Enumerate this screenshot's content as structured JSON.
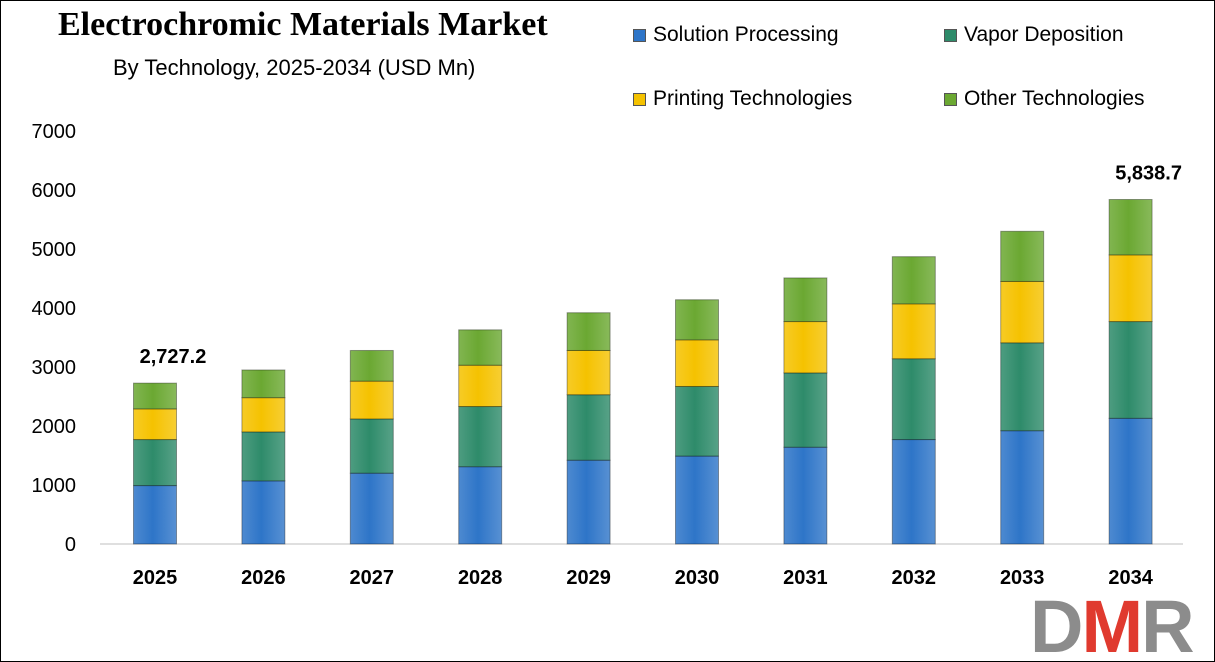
{
  "chart_data": {
    "type": "bar",
    "stacked": true,
    "title": "Electrochromic Materials Market",
    "subtitle": "By Technology, 2025-2034 (USD Mn)",
    "categories": [
      "2025",
      "2026",
      "2027",
      "2028",
      "2029",
      "2030",
      "2031",
      "2032",
      "2033",
      "2034"
    ],
    "series": [
      {
        "name": "Solution Processing",
        "color": "#2E75C8",
        "values": [
          990,
          1070,
          1200,
          1310,
          1420,
          1490,
          1640,
          1770,
          1920,
          2130
        ]
      },
      {
        "name": "Vapor Deposition",
        "color": "#2E8B6A",
        "values": [
          780,
          830,
          920,
          1020,
          1110,
          1180,
          1260,
          1370,
          1490,
          1640
        ]
      },
      {
        "name": "Printing Technologies",
        "color": "#F5C200",
        "values": [
          520,
          580,
          640,
          700,
          750,
          790,
          870,
          930,
          1040,
          1130
        ]
      },
      {
        "name": "Other Technologies",
        "color": "#6BA832",
        "values": [
          437,
          470,
          520,
          600,
          640,
          680,
          740,
          800,
          850,
          939
        ]
      }
    ],
    "totals_labels": [
      {
        "category": "2025",
        "text": "2,727.2"
      },
      {
        "category": "2034",
        "text": "5,838.7"
      }
    ],
    "xlabel": "",
    "ylabel": "",
    "ylim": [
      0,
      7000
    ],
    "yticks": [
      0,
      1000,
      2000,
      3000,
      4000,
      5000,
      6000,
      7000
    ],
    "grid": false,
    "legend_position": "top-right"
  },
  "logo": {
    "text": "DMR",
    "colors": [
      "#8C8C8C",
      "#E03A2F",
      "#8C8C8C"
    ]
  }
}
